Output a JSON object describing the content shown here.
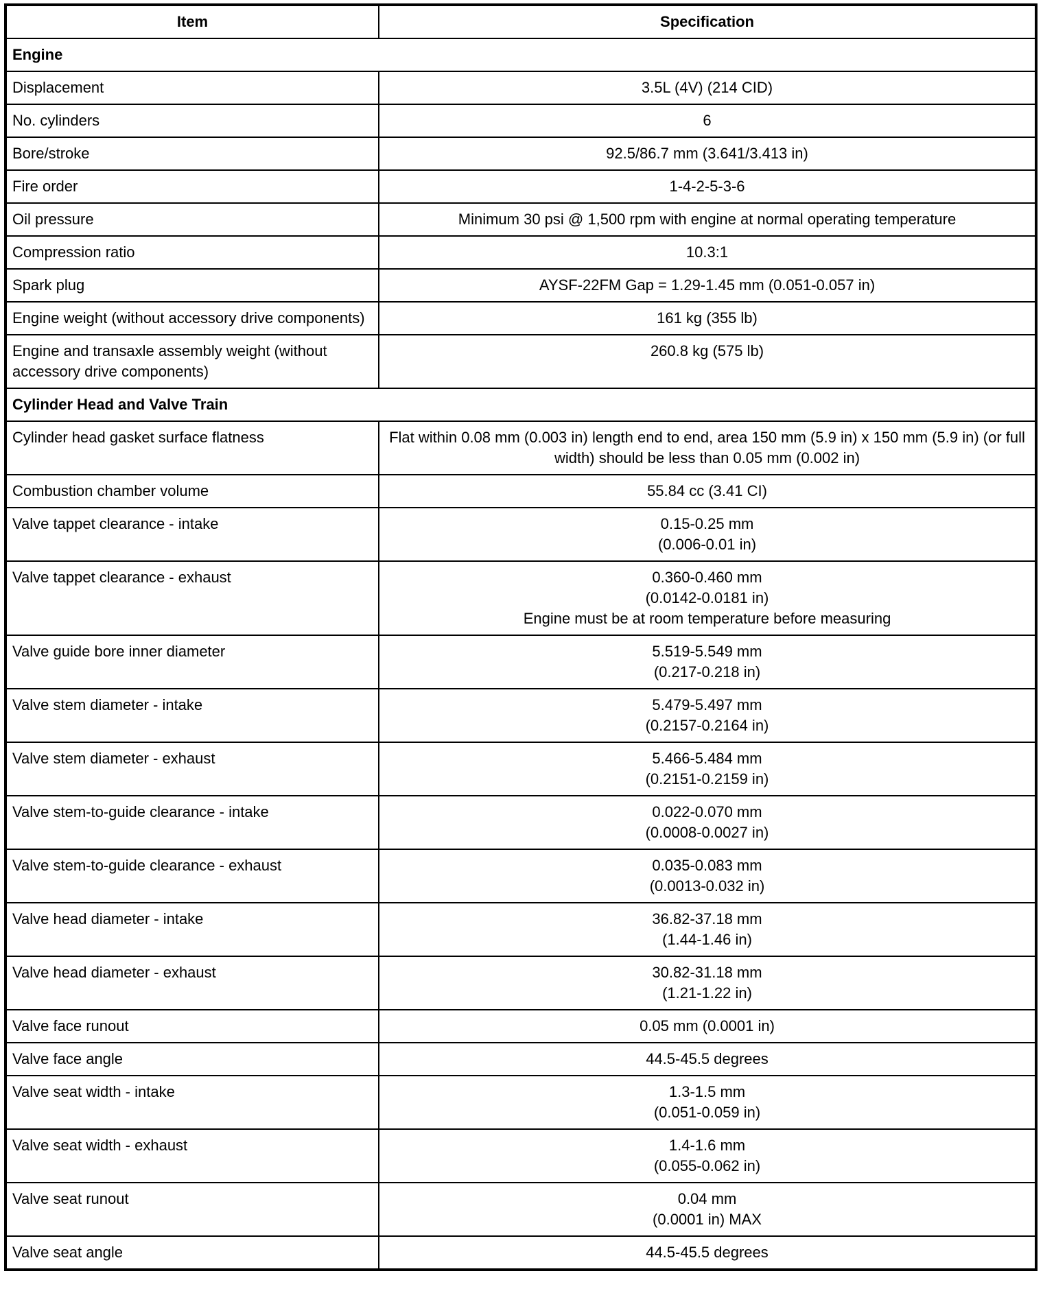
{
  "headers": {
    "item": "Item",
    "specification": "Specification"
  },
  "sections": [
    {
      "title": "Engine",
      "rows": [
        {
          "item": "Displacement",
          "spec": "3.5L (4V) (214 CID)"
        },
        {
          "item": "No. cylinders",
          "spec": "6"
        },
        {
          "item": "Bore/stroke",
          "spec": "92.5/86.7 mm (3.641/3.413 in)"
        },
        {
          "item": "Fire order",
          "spec": "1-4-2-5-3-6"
        },
        {
          "item": "Oil pressure",
          "spec": "Minimum 30 psi @ 1,500 rpm with engine at normal operating temperature"
        },
        {
          "item": "Compression ratio",
          "spec": "10.3:1"
        },
        {
          "item": "Spark plug",
          "spec": "AYSF-22FM Gap = 1.29-1.45 mm (0.051-0.057 in)"
        },
        {
          "item": "Engine weight (without accessory drive components)",
          "spec": "161 kg (355 lb)"
        },
        {
          "item": "Engine and transaxle assembly weight (without accessory drive components)",
          "spec": "260.8 kg (575 lb)"
        }
      ]
    },
    {
      "title": "Cylinder Head and Valve Train",
      "rows": [
        {
          "item": "Cylinder head gasket surface flatness",
          "spec": "Flat within 0.08 mm (0.003 in) length end to end, area 150 mm (5.9 in) x 150 mm (5.9 in) (or full width) should be less than 0.05 mm (0.002 in)"
        },
        {
          "item": "Combustion chamber volume",
          "spec": "55.84 cc (3.41 CI)"
        },
        {
          "item": "Valve tappet clearance - intake",
          "spec": "0.15-0.25 mm\n(0.006-0.01 in)"
        },
        {
          "item": "Valve tappet clearance - exhaust",
          "spec": "0.360-0.460 mm\n(0.0142-0.0181 in)\nEngine must be at room temperature before measuring"
        },
        {
          "item": "Valve guide bore inner diameter",
          "spec": "5.519-5.549 mm\n(0.217-0.218 in)"
        },
        {
          "item": "Valve stem diameter - intake",
          "spec": "5.479-5.497 mm\n(0.2157-0.2164 in)"
        },
        {
          "item": "Valve stem diameter - exhaust",
          "spec": "5.466-5.484 mm\n(0.2151-0.2159 in)"
        },
        {
          "item": "Valve stem-to-guide clearance - intake",
          "spec": "0.022-0.070 mm\n(0.0008-0.0027 in)"
        },
        {
          "item": "Valve stem-to-guide clearance - exhaust",
          "spec": "0.035-0.083 mm\n(0.0013-0.032 in)"
        },
        {
          "item": "Valve head diameter - intake",
          "spec": "36.82-37.18 mm\n(1.44-1.46 in)"
        },
        {
          "item": "Valve head diameter - exhaust",
          "spec": "30.82-31.18 mm\n(1.21-1.22 in)"
        },
        {
          "item": "Valve face runout",
          "spec": "0.05 mm (0.0001 in)"
        },
        {
          "item": "Valve face angle",
          "spec": "44.5-45.5 degrees"
        },
        {
          "item": "Valve seat width - intake",
          "spec": "1.3-1.5 mm\n(0.051-0.059 in)"
        },
        {
          "item": "Valve seat width - exhaust",
          "spec": "1.4-1.6 mm\n(0.055-0.062 in)"
        },
        {
          "item": "Valve seat runout",
          "spec": "0.04 mm\n(0.0001 in) MAX"
        },
        {
          "item": "Valve seat angle",
          "spec": "44.5-45.5 degrees"
        }
      ]
    }
  ]
}
